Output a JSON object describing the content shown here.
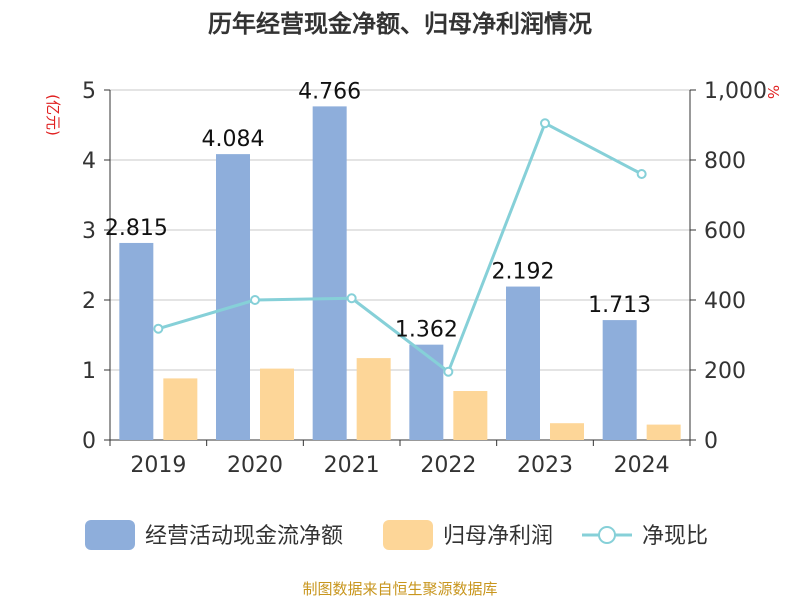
{
  "title": "历年经营现金净额、归母净利润情况",
  "source": "制图数据来自恒生聚源数据库",
  "chart_data": {
    "type": "bar",
    "title": "历年经营现金净额、归母净利润情况",
    "categories": [
      "2019",
      "2020",
      "2021",
      "2022",
      "2023",
      "2024"
    ],
    "left_axis": {
      "unit": "(亿元)",
      "min": 0,
      "max": 5,
      "ticks": [
        "0",
        "1",
        "2",
        "3",
        "4",
        "5"
      ]
    },
    "right_axis": {
      "unit": "%",
      "min": 0,
      "max": 1000,
      "ticks": [
        "0",
        "200",
        "400",
        "600",
        "800",
        "1,000"
      ]
    },
    "series": [
      {
        "name": "经营活动现金流净额",
        "type": "bar",
        "axis": "left",
        "color": "#8eaedb",
        "values": [
          2.815,
          4.084,
          4.766,
          1.362,
          2.192,
          1.713
        ],
        "labels": [
          "2.815",
          "4.084",
          "4.766",
          "1.362",
          "2.192",
          "1.713"
        ]
      },
      {
        "name": "归母净利润",
        "type": "bar",
        "axis": "left",
        "color": "#fdd698",
        "values": [
          0.88,
          1.02,
          1.17,
          0.7,
          0.24,
          0.22
        ]
      },
      {
        "name": "净现比",
        "type": "line",
        "axis": "right",
        "color": "#86d0d8",
        "values": [
          318,
          400,
          405,
          195,
          905,
          760
        ]
      }
    ],
    "grid": true,
    "legend_position": "bottom"
  }
}
